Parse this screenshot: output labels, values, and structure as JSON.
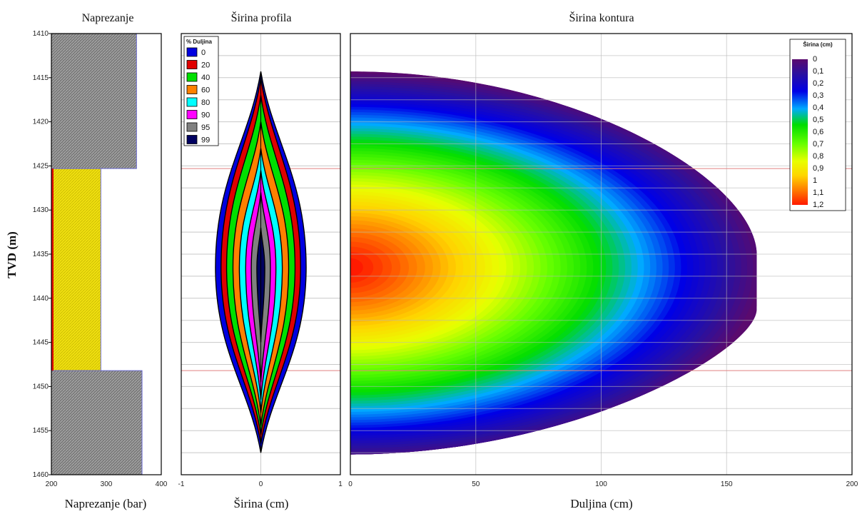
{
  "y_axis_label": "TVD (m)",
  "chart_data": [
    {
      "type": "bar",
      "title": "Naprezanje",
      "xlabel": "Naprezanje (bar)",
      "xlim": [
        200,
        400
      ],
      "x_ticks": [
        "200",
        "300",
        "400"
      ],
      "ylim": [
        1410,
        1460
      ],
      "y_ticks": [
        "1410",
        "1415",
        "1420",
        "1425",
        "1430",
        "1435",
        "1440",
        "1445",
        "1450",
        "1455",
        "1460"
      ],
      "layers": [
        {
          "top": 1410,
          "bottom": 1425.3,
          "stress": 355,
          "color": "#8a8a8a"
        },
        {
          "top": 1425.3,
          "bottom": 1448.2,
          "stress": 290,
          "color": "#f2e31a"
        },
        {
          "top": 1448.2,
          "bottom": 1460,
          "stress": 365,
          "color": "#8a8a8a"
        }
      ],
      "zone_boundaries": [
        1425.3,
        1448.2
      ]
    },
    {
      "type": "area",
      "title": "Širina profila",
      "xlabel": "Širina (cm)",
      "xlim": [
        -1,
        1
      ],
      "x_ticks": [
        "-1",
        "0",
        "1"
      ],
      "legend_title": "% Duljina",
      "legend_position": "top-left",
      "series": [
        {
          "name": "0",
          "color": "#0000e0",
          "half_width": 0.57,
          "top": 1414.3,
          "bottom": 1457.5
        },
        {
          "name": "20",
          "color": "#e00000",
          "half_width": 0.5,
          "top": 1415.0,
          "bottom": 1456.5
        },
        {
          "name": "40",
          "color": "#00e000",
          "half_width": 0.43,
          "top": 1417.0,
          "bottom": 1455.5
        },
        {
          "name": "60",
          "color": "#ff8000",
          "half_width": 0.35,
          "top": 1420.0,
          "bottom": 1454.5
        },
        {
          "name": "80",
          "color": "#00ffff",
          "half_width": 0.27,
          "top": 1423.0,
          "bottom": 1453.0
        },
        {
          "name": "90",
          "color": "#ff00ff",
          "half_width": 0.19,
          "top": 1425.5,
          "bottom": 1451.5
        },
        {
          "name": "95",
          "color": "#808080",
          "half_width": 0.12,
          "top": 1428.0,
          "bottom": 1449.5
        },
        {
          "name": "99",
          "color": "#000060",
          "half_width": 0.05,
          "top": 1432.0,
          "bottom": 1445.0
        }
      ]
    },
    {
      "type": "heatmap",
      "title": "Širina kontura",
      "xlabel": "Duljina (cm)",
      "xlim": [
        0,
        200
      ],
      "x_ticks": [
        "0",
        "50",
        "100",
        "150",
        "200"
      ],
      "legend_title": "Širina (cm)",
      "legend_position": "top-right",
      "colorbar_labels": [
        "0",
        "0,1",
        "0,2",
        "0,3",
        "0,4",
        "0,5",
        "0,6",
        "0,7",
        "0,8",
        "0,9",
        "1",
        "1,1",
        "1,2"
      ],
      "max_length": 162,
      "top": 1414.3,
      "bottom": 1457.7,
      "center": 1436.5,
      "max_width": 1.2
    }
  ]
}
